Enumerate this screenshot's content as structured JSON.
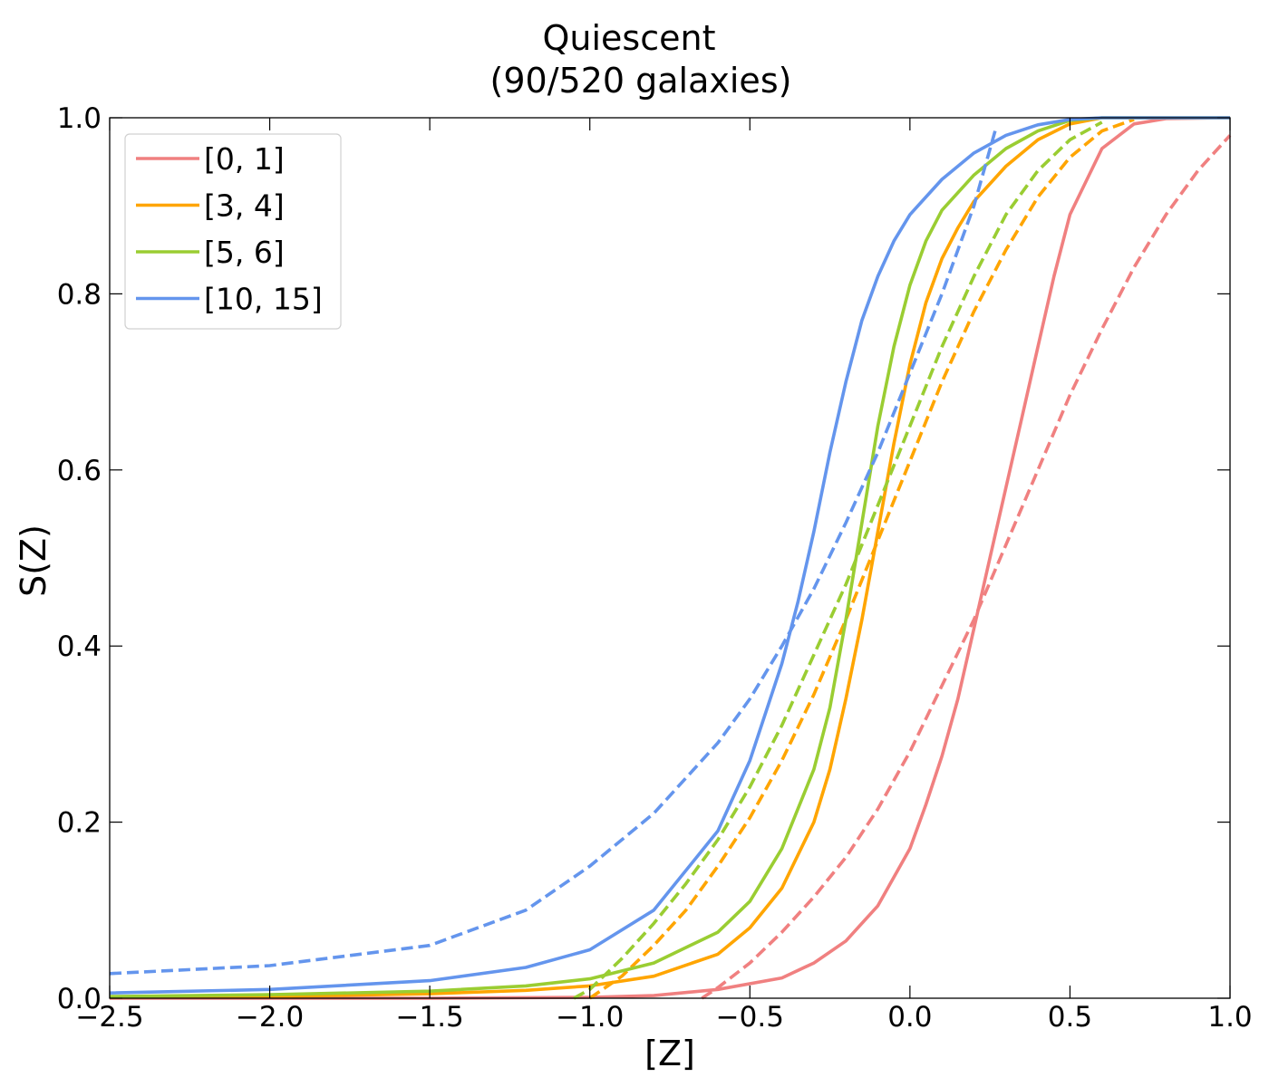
{
  "chart_data": {
    "type": "line",
    "title": "Quiescent",
    "subtitle": "(90/520 galaxies)",
    "xlabel": "[Z]",
    "ylabel": "S(Z)",
    "xlim": [
      -2.5,
      1.0
    ],
    "ylim": [
      0.0,
      1.0
    ],
    "xticks": [
      "−2.5",
      "−2.0",
      "−1.5",
      "−1.0",
      "−0.5",
      "0.0",
      "0.5",
      "1.0"
    ],
    "yticks": [
      "0.0",
      "0.2",
      "0.4",
      "0.6",
      "0.8",
      "1.0"
    ],
    "grid": false,
    "legend_position": "upper left",
    "series": [
      {
        "name": "[0, 1]",
        "color": "#f08080",
        "style": "solid",
        "x": [
          -2.5,
          -1.5,
          -1.0,
          -0.8,
          -0.6,
          -0.4,
          -0.3,
          -0.2,
          -0.1,
          0.0,
          0.05,
          0.1,
          0.15,
          0.2,
          0.25,
          0.3,
          0.35,
          0.4,
          0.45,
          0.5,
          0.6,
          0.7,
          0.8,
          1.0
        ],
        "y": [
          0.0,
          0.0,
          0.001,
          0.003,
          0.01,
          0.023,
          0.04,
          0.065,
          0.105,
          0.17,
          0.22,
          0.275,
          0.34,
          0.42,
          0.5,
          0.58,
          0.66,
          0.74,
          0.82,
          0.89,
          0.965,
          0.993,
          0.999,
          1.0
        ]
      },
      {
        "name": "[0, 1]",
        "color": "#f08080",
        "style": "dashed",
        "x": [
          -0.65,
          -0.6,
          -0.5,
          -0.4,
          -0.3,
          -0.2,
          -0.1,
          0.0,
          0.1,
          0.2,
          0.3,
          0.4,
          0.5,
          0.6,
          0.7,
          0.8,
          0.9,
          1.0
        ],
        "y": [
          0.0,
          0.012,
          0.04,
          0.075,
          0.115,
          0.16,
          0.215,
          0.28,
          0.355,
          0.43,
          0.515,
          0.6,
          0.685,
          0.76,
          0.83,
          0.89,
          0.94,
          0.98
        ]
      },
      {
        "name": "[3, 4]",
        "color": "#ffa500",
        "style": "solid",
        "x": [
          -2.5,
          -2.0,
          -1.5,
          -1.2,
          -1.0,
          -0.8,
          -0.6,
          -0.5,
          -0.4,
          -0.3,
          -0.25,
          -0.2,
          -0.15,
          -0.1,
          -0.05,
          0.0,
          0.05,
          0.1,
          0.15,
          0.2,
          0.3,
          0.4,
          0.5,
          0.6,
          0.7,
          1.0
        ],
        "y": [
          0.001,
          0.002,
          0.005,
          0.009,
          0.014,
          0.025,
          0.05,
          0.08,
          0.125,
          0.2,
          0.26,
          0.34,
          0.43,
          0.53,
          0.63,
          0.72,
          0.79,
          0.84,
          0.875,
          0.905,
          0.945,
          0.975,
          0.993,
          1.0,
          1.0,
          1.0
        ]
      },
      {
        "name": "[3, 4]",
        "color": "#ffa500",
        "style": "dashed",
        "x": [
          -1.0,
          -0.9,
          -0.8,
          -0.7,
          -0.6,
          -0.5,
          -0.4,
          -0.3,
          -0.2,
          -0.1,
          0.0,
          0.1,
          0.2,
          0.3,
          0.4,
          0.5,
          0.6,
          0.7
        ],
        "y": [
          0.0,
          0.025,
          0.06,
          0.1,
          0.15,
          0.205,
          0.27,
          0.345,
          0.43,
          0.52,
          0.61,
          0.7,
          0.78,
          0.85,
          0.91,
          0.955,
          0.985,
          0.998
        ]
      },
      {
        "name": "[5, 6]",
        "color": "#9acd32",
        "style": "solid",
        "x": [
          -2.5,
          -2.0,
          -1.5,
          -1.2,
          -1.0,
          -0.8,
          -0.6,
          -0.5,
          -0.4,
          -0.3,
          -0.25,
          -0.2,
          -0.15,
          -0.1,
          -0.05,
          0.0,
          0.05,
          0.1,
          0.2,
          0.3,
          0.4,
          0.5,
          0.6,
          0.7,
          1.0
        ],
        "y": [
          0.002,
          0.004,
          0.008,
          0.014,
          0.022,
          0.04,
          0.075,
          0.11,
          0.17,
          0.26,
          0.33,
          0.43,
          0.54,
          0.65,
          0.74,
          0.81,
          0.86,
          0.895,
          0.935,
          0.965,
          0.985,
          0.997,
          1.0,
          1.0,
          1.0
        ]
      },
      {
        "name": "[5, 6]",
        "color": "#9acd32",
        "style": "dashed",
        "x": [
          -1.05,
          -1.0,
          -0.9,
          -0.8,
          -0.7,
          -0.6,
          -0.5,
          -0.4,
          -0.3,
          -0.2,
          -0.1,
          0.0,
          0.1,
          0.2,
          0.3,
          0.4,
          0.5,
          0.6
        ],
        "y": [
          0.0,
          0.01,
          0.045,
          0.085,
          0.13,
          0.18,
          0.24,
          0.31,
          0.39,
          0.47,
          0.56,
          0.65,
          0.74,
          0.82,
          0.89,
          0.94,
          0.975,
          0.995
        ]
      },
      {
        "name": "[10, 15]",
        "color": "#6495ed",
        "style": "solid",
        "x": [
          -2.5,
          -2.0,
          -1.5,
          -1.2,
          -1.0,
          -0.8,
          -0.6,
          -0.5,
          -0.4,
          -0.35,
          -0.3,
          -0.25,
          -0.2,
          -0.15,
          -0.1,
          -0.05,
          0.0,
          0.1,
          0.2,
          0.3,
          0.4,
          0.5,
          0.6,
          0.7,
          1.0
        ],
        "y": [
          0.006,
          0.01,
          0.02,
          0.035,
          0.055,
          0.1,
          0.19,
          0.27,
          0.38,
          0.45,
          0.53,
          0.62,
          0.7,
          0.77,
          0.82,
          0.86,
          0.89,
          0.93,
          0.96,
          0.98,
          0.992,
          0.998,
          1.0,
          1.0,
          1.0
        ]
      },
      {
        "name": "[10, 15]",
        "color": "#6495ed",
        "style": "dashed",
        "x": [
          -2.5,
          -2.0,
          -1.5,
          -1.2,
          -1.0,
          -0.8,
          -0.6,
          -0.5,
          -0.4,
          -0.3,
          -0.2,
          -0.1,
          0.0,
          0.1,
          0.2,
          0.27
        ],
        "y": [
          0.028,
          0.037,
          0.06,
          0.1,
          0.15,
          0.21,
          0.29,
          0.34,
          0.4,
          0.465,
          0.54,
          0.62,
          0.71,
          0.8,
          0.9,
          0.99
        ]
      }
    ],
    "legend": [
      {
        "label": "[0, 1]",
        "color": "#f08080"
      },
      {
        "label": "[3, 4]",
        "color": "#ffa500"
      },
      {
        "label": "[5, 6]",
        "color": "#9acd32"
      },
      {
        "label": "[10, 15]",
        "color": "#6495ed"
      }
    ]
  }
}
